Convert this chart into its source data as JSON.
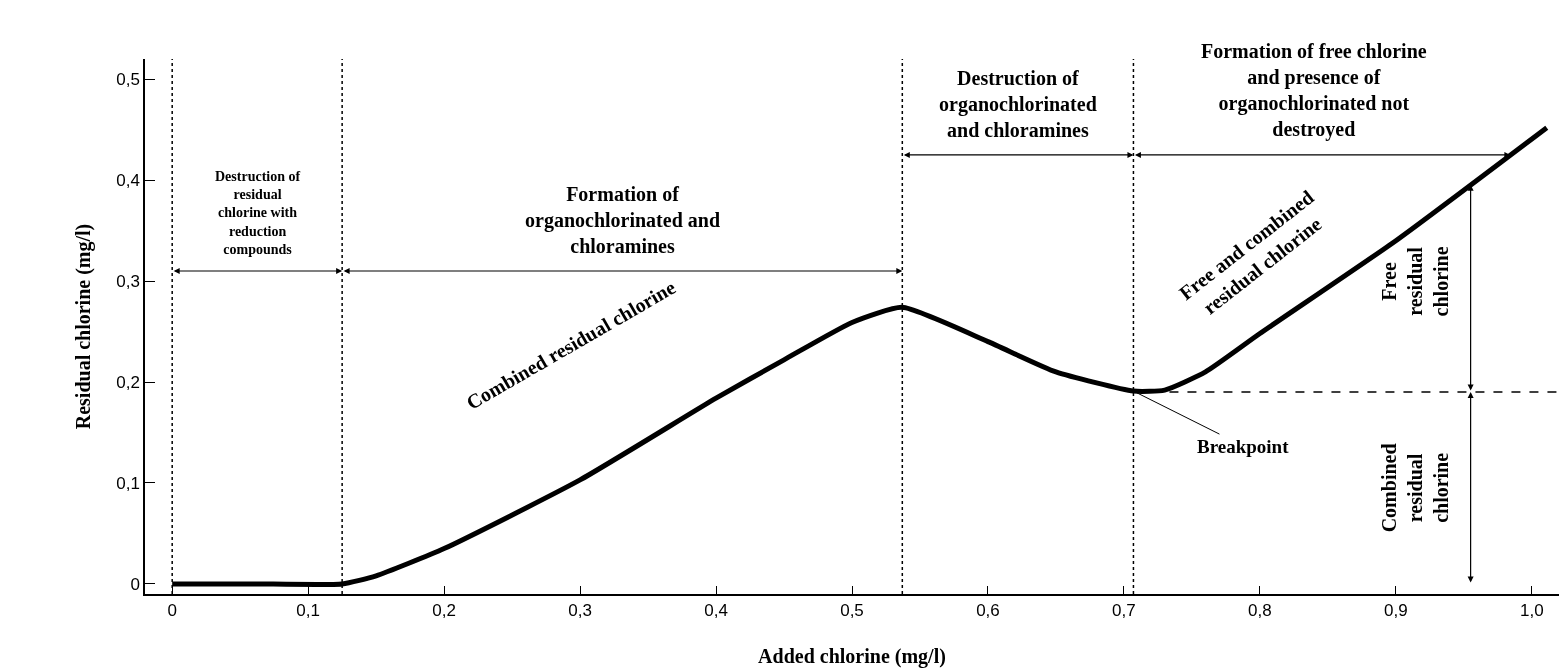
{
  "chart_data": {
    "type": "line",
    "xlabel": "Added chlorine (mg/l)",
    "ylabel": "Residual chlorine (mg/l)",
    "x": [
      0,
      0.06,
      0.125,
      0.15,
      0.2,
      0.3,
      0.4,
      0.45,
      0.5,
      0.537,
      0.6,
      0.65,
      0.707,
      0.73,
      0.76,
      0.8,
      0.9,
      1.011
    ],
    "series": [
      {
        "color": "#000000",
        "values": [
          0,
          0,
          0,
          0.008,
          0.035,
          0.103,
          0.184,
          0.222,
          0.259,
          0.274,
          0.24,
          0.21,
          0.191,
          0.192,
          0.21,
          0.248,
          0.34,
          0.452
        ]
      }
    ],
    "xlim": [
      -0.02,
      1.02
    ],
    "ylim": [
      -0.01,
      0.52
    ],
    "xticks": [
      0,
      {
        "value": 0.1,
        "label": "0,1"
      },
      {
        "value": 0.2,
        "label": "0,2"
      },
      {
        "value": 0.3,
        "label": "0,3"
      },
      {
        "value": 0.4,
        "label": "0,4"
      },
      {
        "value": 0.5,
        "label": "0,5"
      },
      {
        "value": 0.6,
        "label": "0,6"
      },
      {
        "value": 0.7,
        "label": "0,7"
      },
      {
        "value": 0.8,
        "label": "0,8"
      },
      {
        "value": 0.9,
        "label": "0,9"
      },
      {
        "value": 1.0,
        "label": "1,0"
      }
    ],
    "yticks": [
      0,
      {
        "value": 0.1,
        "label": "0,1"
      },
      {
        "value": 0.2,
        "label": "0,2"
      },
      {
        "value": 0.3,
        "label": "0,3"
      },
      {
        "value": 0.4,
        "label": "0,4"
      },
      {
        "value": 0.5,
        "label": "0,5"
      }
    ],
    "grid": false,
    "marker": "none",
    "line_style": "solid",
    "ref_lines": [
      {
        "axis": "x",
        "value": 0,
        "line_style": "dotted"
      },
      {
        "axis": "x",
        "value": 0.125,
        "line_style": "dotted"
      },
      {
        "axis": "x",
        "value": 0.537,
        "line_style": "dotted"
      },
      {
        "axis": "x",
        "value": 0.707,
        "line_style": "dotted"
      },
      {
        "axis": "y",
        "value": 0.19,
        "line_style": "dashed"
      }
    ],
    "annotations": [
      "Destruction of residual chlorine with reduction compounds",
      "Formation of organochlorinated and chloramines",
      "Destruction of organochlorinated and chloramines",
      "Formation of free chlorine and presence of organochlorinated not destroyed",
      "Combined residual chlorine",
      "Free residual chlorine",
      "Combined residual chlorine",
      "Free and combined residual chlorine",
      {
        "text": "Breakpoint",
        "x": 0.707,
        "y": 0.191
      }
    ]
  }
}
